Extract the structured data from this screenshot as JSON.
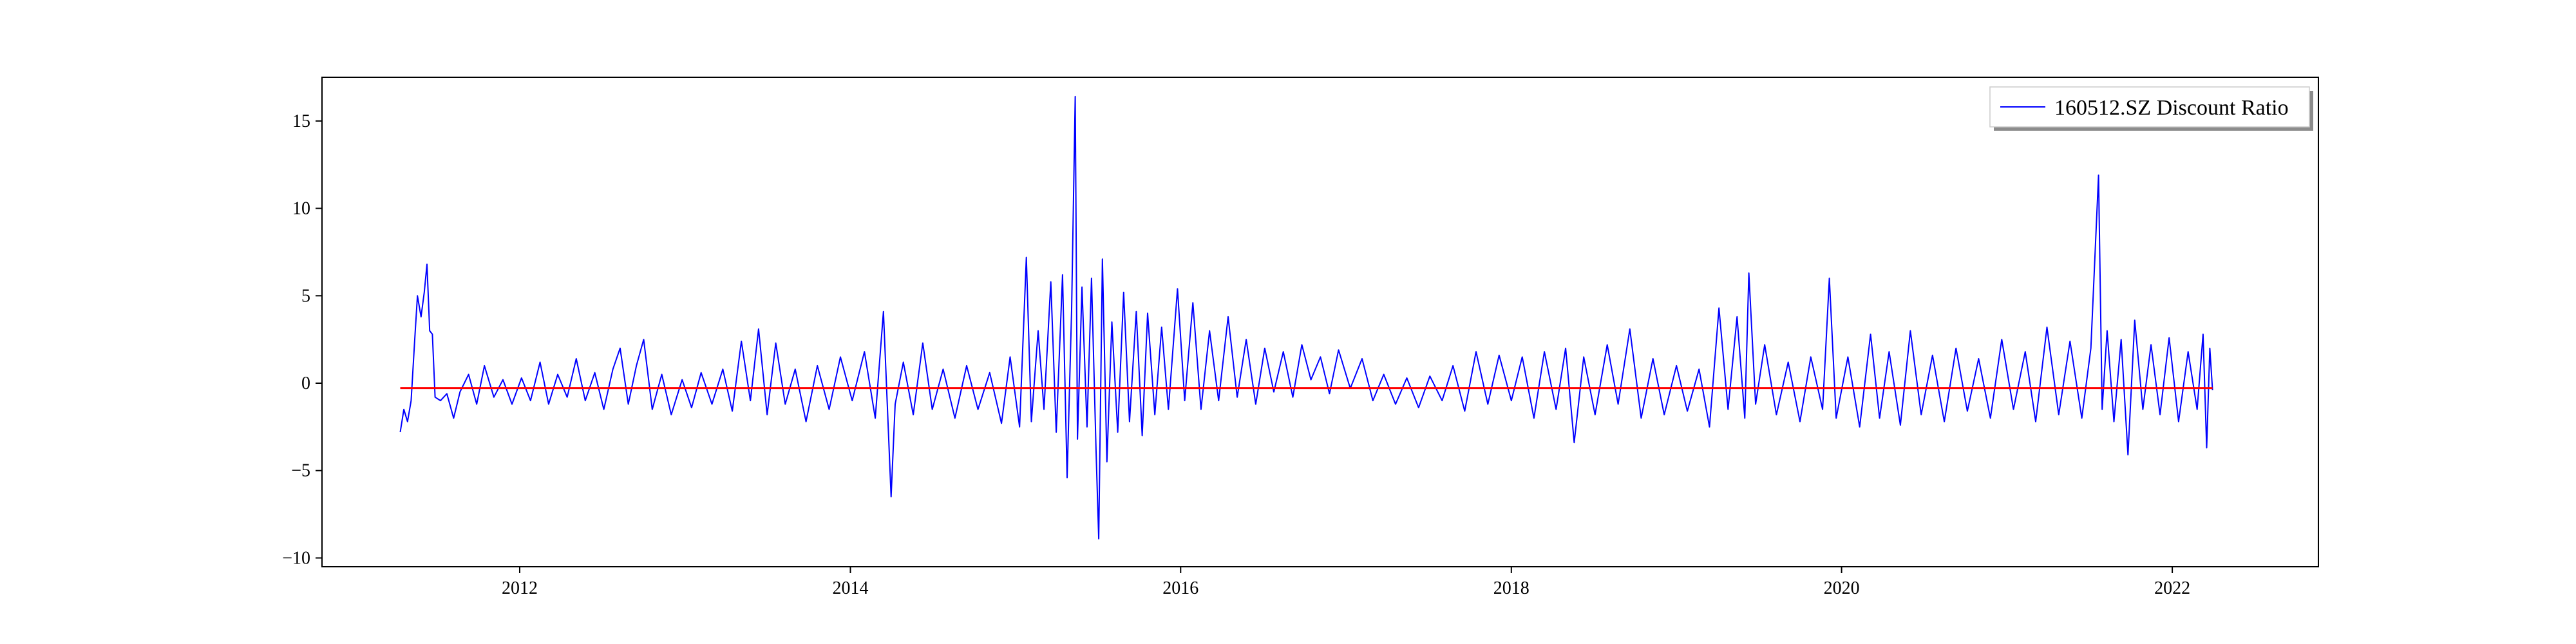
{
  "chart_data": {
    "type": "line",
    "title": "",
    "xlabel": "",
    "ylabel": "",
    "xlim": [
      "2010-10-21",
      "2022-11-20"
    ],
    "ylim": [
      -10.5,
      17.5
    ],
    "grid": false,
    "legend_position": "top-right",
    "x_ticks": [
      {
        "value": "2012-01-01",
        "label": "2012"
      },
      {
        "value": "2014-01-01",
        "label": "2014"
      },
      {
        "value": "2016-01-01",
        "label": "2016"
      },
      {
        "value": "2018-01-01",
        "label": "2018"
      },
      {
        "value": "2020-01-01",
        "label": "2020"
      },
      {
        "value": "2022-01-01",
        "label": "2022"
      }
    ],
    "y_ticks": [
      {
        "value": 15,
        "label": "15"
      },
      {
        "value": 10,
        "label": "10"
      },
      {
        "value": 5,
        "label": "5"
      },
      {
        "value": 0,
        "label": "0"
      },
      {
        "value": -5,
        "label": "−5"
      },
      {
        "value": -10,
        "label": "−10"
      }
    ],
    "series": [
      {
        "name": "160512.SZ Discount Ratio",
        "color": "#0000ff",
        "in_legend": true,
        "points": [
          [
            "2011-04-12",
            -2.8
          ],
          [
            "2011-04-20",
            -1.5
          ],
          [
            "2011-04-28",
            -2.2
          ],
          [
            "2011-05-06",
            -1.0
          ],
          [
            "2011-05-14",
            2.5
          ],
          [
            "2011-05-20",
            5.0
          ],
          [
            "2011-05-28",
            3.8
          ],
          [
            "2011-06-04",
            5.2
          ],
          [
            "2011-06-10",
            6.8
          ],
          [
            "2011-06-16",
            3.0
          ],
          [
            "2011-06-22",
            2.8
          ],
          [
            "2011-06-28",
            -0.8
          ],
          [
            "2011-07-10",
            -1.0
          ],
          [
            "2011-07-24",
            -0.6
          ],
          [
            "2011-08-08",
            -2.0
          ],
          [
            "2011-08-22",
            -0.5
          ],
          [
            "2011-09-10",
            0.5
          ],
          [
            "2011-09-28",
            -1.2
          ],
          [
            "2011-10-15",
            1.0
          ],
          [
            "2011-11-05",
            -0.8
          ],
          [
            "2011-11-25",
            0.2
          ],
          [
            "2011-12-15",
            -1.2
          ],
          [
            "2012-01-05",
            0.3
          ],
          [
            "2012-01-25",
            -1.0
          ],
          [
            "2012-02-15",
            1.2
          ],
          [
            "2012-03-05",
            -1.2
          ],
          [
            "2012-03-25",
            0.5
          ],
          [
            "2012-04-15",
            -0.8
          ],
          [
            "2012-05-05",
            1.4
          ],
          [
            "2012-05-25",
            -1.0
          ],
          [
            "2012-06-15",
            0.6
          ],
          [
            "2012-07-05",
            -1.5
          ],
          [
            "2012-07-25",
            0.8
          ],
          [
            "2012-08-10",
            2.0
          ],
          [
            "2012-08-28",
            -1.2
          ],
          [
            "2012-09-15",
            1.0
          ],
          [
            "2012-10-01",
            2.5
          ],
          [
            "2012-10-20",
            -1.5
          ],
          [
            "2012-11-10",
            0.5
          ],
          [
            "2012-12-01",
            -1.8
          ],
          [
            "2012-12-25",
            0.2
          ],
          [
            "2013-01-15",
            -1.4
          ],
          [
            "2013-02-05",
            0.6
          ],
          [
            "2013-03-01",
            -1.2
          ],
          [
            "2013-03-25",
            0.8
          ],
          [
            "2013-04-15",
            -1.6
          ],
          [
            "2013-05-05",
            2.4
          ],
          [
            "2013-05-25",
            -1.0
          ],
          [
            "2013-06-12",
            3.1
          ],
          [
            "2013-07-01",
            -1.8
          ],
          [
            "2013-07-20",
            2.3
          ],
          [
            "2013-08-10",
            -1.2
          ],
          [
            "2013-09-01",
            0.8
          ],
          [
            "2013-09-25",
            -2.2
          ],
          [
            "2013-10-20",
            1.0
          ],
          [
            "2013-11-15",
            -1.5
          ],
          [
            "2013-12-10",
            1.5
          ],
          [
            "2014-01-05",
            -1.0
          ],
          [
            "2014-02-01",
            1.8
          ],
          [
            "2014-02-25",
            -2.0
          ],
          [
            "2014-03-15",
            4.1
          ],
          [
            "2014-04-01",
            -6.5
          ],
          [
            "2014-04-10",
            -1.2
          ],
          [
            "2014-04-28",
            1.2
          ],
          [
            "2014-05-20",
            -1.8
          ],
          [
            "2014-06-10",
            2.3
          ],
          [
            "2014-07-01",
            -1.5
          ],
          [
            "2014-07-25",
            0.8
          ],
          [
            "2014-08-20",
            -2.0
          ],
          [
            "2014-09-15",
            1.0
          ],
          [
            "2014-10-10",
            -1.5
          ],
          [
            "2014-11-05",
            0.6
          ],
          [
            "2014-12-01",
            -2.3
          ],
          [
            "2014-12-20",
            1.5
          ],
          [
            "2015-01-10",
            -2.5
          ],
          [
            "2015-01-25",
            7.2
          ],
          [
            "2015-02-05",
            -2.2
          ],
          [
            "2015-02-20",
            3.0
          ],
          [
            "2015-03-05",
            -1.5
          ],
          [
            "2015-03-20",
            5.8
          ],
          [
            "2015-04-01",
            -2.8
          ],
          [
            "2015-04-15",
            6.2
          ],
          [
            "2015-04-25",
            -5.4
          ],
          [
            "2015-05-05",
            4.2
          ],
          [
            "2015-05-13",
            16.4
          ],
          [
            "2015-05-18",
            -3.2
          ],
          [
            "2015-05-28",
            5.5
          ],
          [
            "2015-06-08",
            -2.5
          ],
          [
            "2015-06-18",
            6.0
          ],
          [
            "2015-06-28",
            -3.8
          ],
          [
            "2015-07-04",
            -8.9
          ],
          [
            "2015-07-12",
            7.1
          ],
          [
            "2015-07-22",
            -4.5
          ],
          [
            "2015-08-02",
            3.5
          ],
          [
            "2015-08-15",
            -2.8
          ],
          [
            "2015-08-28",
            5.2
          ],
          [
            "2015-09-10",
            -2.2
          ],
          [
            "2015-09-25",
            4.1
          ],
          [
            "2015-10-08",
            -3.0
          ],
          [
            "2015-10-20",
            4.0
          ],
          [
            "2015-11-05",
            -1.8
          ],
          [
            "2015-11-20",
            3.2
          ],
          [
            "2015-12-05",
            -1.5
          ],
          [
            "2015-12-25",
            5.4
          ],
          [
            "2016-01-10",
            -1.0
          ],
          [
            "2016-01-28",
            4.6
          ],
          [
            "2016-02-15",
            -1.5
          ],
          [
            "2016-03-05",
            3.0
          ],
          [
            "2016-03-25",
            -1.0
          ],
          [
            "2016-04-15",
            3.8
          ],
          [
            "2016-05-05",
            -0.8
          ],
          [
            "2016-05-25",
            2.5
          ],
          [
            "2016-06-15",
            -1.2
          ],
          [
            "2016-07-05",
            2.0
          ],
          [
            "2016-07-25",
            -0.5
          ],
          [
            "2016-08-15",
            1.8
          ],
          [
            "2016-09-05",
            -0.8
          ],
          [
            "2016-09-25",
            2.2
          ],
          [
            "2016-10-15",
            0.2
          ],
          [
            "2016-11-05",
            1.5
          ],
          [
            "2016-11-25",
            -0.6
          ],
          [
            "2016-12-15",
            1.9
          ],
          [
            "2017-01-10",
            -0.3
          ],
          [
            "2017-02-05",
            1.4
          ],
          [
            "2017-03-01",
            -1.0
          ],
          [
            "2017-03-25",
            0.5
          ],
          [
            "2017-04-20",
            -1.2
          ],
          [
            "2017-05-15",
            0.3
          ],
          [
            "2017-06-10",
            -1.4
          ],
          [
            "2017-07-05",
            0.4
          ],
          [
            "2017-08-01",
            -1.0
          ],
          [
            "2017-08-25",
            1.0
          ],
          [
            "2017-09-20",
            -1.6
          ],
          [
            "2017-10-15",
            1.8
          ],
          [
            "2017-11-10",
            -1.2
          ],
          [
            "2017-12-05",
            1.6
          ],
          [
            "2018-01-01",
            -1.0
          ],
          [
            "2018-01-25",
            1.5
          ],
          [
            "2018-02-20",
            -2.0
          ],
          [
            "2018-03-15",
            1.8
          ],
          [
            "2018-04-10",
            -1.5
          ],
          [
            "2018-05-01",
            2.0
          ],
          [
            "2018-05-20",
            -3.4
          ],
          [
            "2018-06-10",
            1.5
          ],
          [
            "2018-07-05",
            -1.8
          ],
          [
            "2018-08-01",
            2.2
          ],
          [
            "2018-08-25",
            -1.2
          ],
          [
            "2018-09-20",
            3.1
          ],
          [
            "2018-10-15",
            -2.0
          ],
          [
            "2018-11-10",
            1.4
          ],
          [
            "2018-12-05",
            -1.8
          ],
          [
            "2019-01-01",
            1.0
          ],
          [
            "2019-01-25",
            -1.6
          ],
          [
            "2019-02-20",
            0.8
          ],
          [
            "2019-03-15",
            -2.5
          ],
          [
            "2019-04-05",
            4.3
          ],
          [
            "2019-04-25",
            -1.5
          ],
          [
            "2019-05-15",
            3.8
          ],
          [
            "2019-06-01",
            -2.0
          ],
          [
            "2019-06-10",
            6.3
          ],
          [
            "2019-06-25",
            -1.2
          ],
          [
            "2019-07-15",
            2.2
          ],
          [
            "2019-08-10",
            -1.8
          ],
          [
            "2019-09-05",
            1.2
          ],
          [
            "2019-10-01",
            -2.2
          ],
          [
            "2019-10-25",
            1.5
          ],
          [
            "2019-11-20",
            -1.5
          ],
          [
            "2019-12-05",
            6.0
          ],
          [
            "2019-12-20",
            -2.0
          ],
          [
            "2020-01-15",
            1.5
          ],
          [
            "2020-02-10",
            -2.5
          ],
          [
            "2020-03-05",
            2.8
          ],
          [
            "2020-03-25",
            -2.0
          ],
          [
            "2020-04-15",
            1.8
          ],
          [
            "2020-05-10",
            -2.4
          ],
          [
            "2020-06-01",
            3.0
          ],
          [
            "2020-06-25",
            -1.8
          ],
          [
            "2020-07-20",
            1.6
          ],
          [
            "2020-08-15",
            -2.2
          ],
          [
            "2020-09-10",
            2.0
          ],
          [
            "2020-10-05",
            -1.6
          ],
          [
            "2020-10-30",
            1.4
          ],
          [
            "2020-11-25",
            -2.0
          ],
          [
            "2020-12-20",
            2.5
          ],
          [
            "2021-01-15",
            -1.5
          ],
          [
            "2021-02-10",
            1.8
          ],
          [
            "2021-03-05",
            -2.2
          ],
          [
            "2021-03-30",
            3.2
          ],
          [
            "2021-04-25",
            -1.8
          ],
          [
            "2021-05-20",
            2.4
          ],
          [
            "2021-06-15",
            -2.0
          ],
          [
            "2021-07-05",
            2.0
          ],
          [
            "2021-07-22",
            11.9
          ],
          [
            "2021-07-30",
            -1.5
          ],
          [
            "2021-08-10",
            3.0
          ],
          [
            "2021-08-25",
            -2.2
          ],
          [
            "2021-09-10",
            2.5
          ],
          [
            "2021-09-25",
            -4.1
          ],
          [
            "2021-10-10",
            3.6
          ],
          [
            "2021-10-28",
            -1.5
          ],
          [
            "2021-11-15",
            2.2
          ],
          [
            "2021-12-05",
            -1.8
          ],
          [
            "2021-12-25",
            2.6
          ],
          [
            "2022-01-15",
            -2.2
          ],
          [
            "2022-02-05",
            1.8
          ],
          [
            "2022-02-25",
            -1.5
          ],
          [
            "2022-03-10",
            2.8
          ],
          [
            "2022-03-18",
            -3.7
          ],
          [
            "2022-03-25",
            2.0
          ],
          [
            "2022-03-31",
            -0.4
          ]
        ]
      },
      {
        "color": "#ff0000",
        "in_legend": false,
        "points": [
          [
            "2011-04-12",
            -0.28
          ],
          [
            "2022-03-31",
            -0.28
          ]
        ]
      }
    ]
  }
}
